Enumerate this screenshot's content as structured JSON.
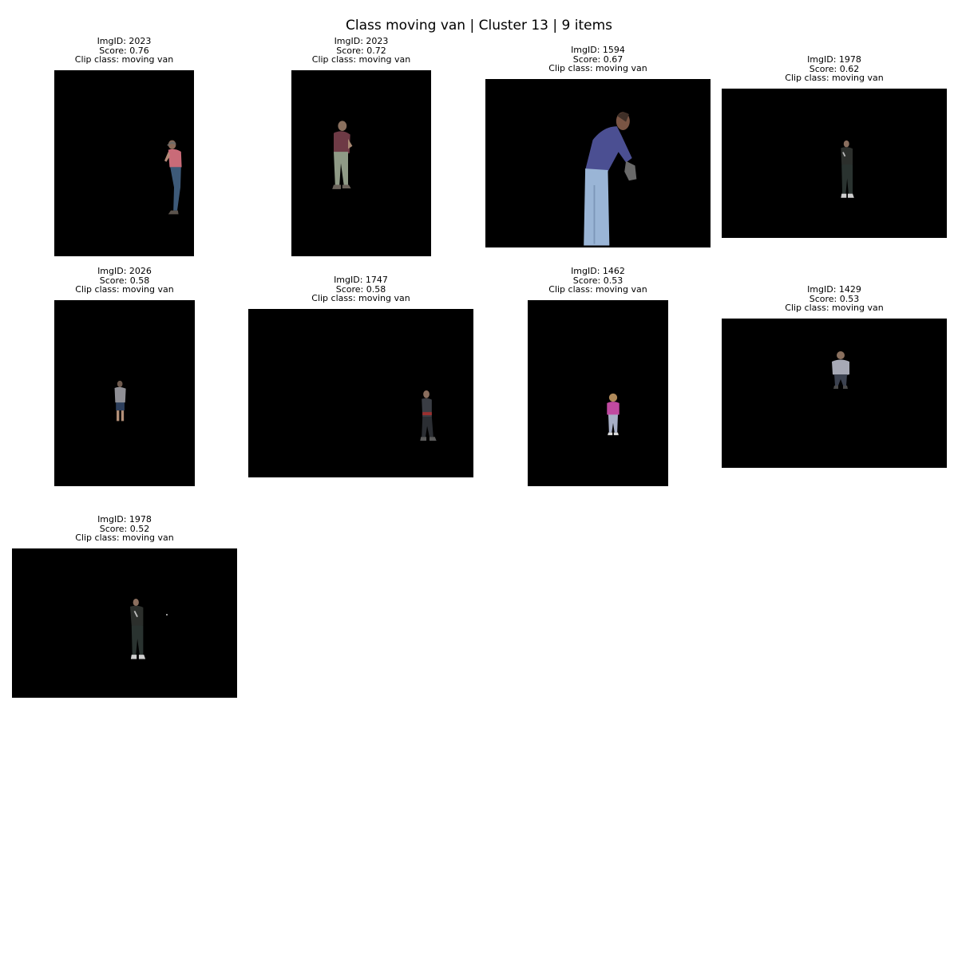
{
  "title": "Class moving van | Cluster 13 | 9 items",
  "items": [
    {
      "img_id": "ImgID: 2023",
      "score": "Score: 0.76",
      "clip_class": "Clip class: moving van",
      "subject": "person-cutout-icon"
    },
    {
      "img_id": "ImgID: 2023",
      "score": "Score: 0.72",
      "clip_class": "Clip class: moving van",
      "subject": "person-cutout-icon"
    },
    {
      "img_id": "ImgID: 1594",
      "score": "Score: 0.67",
      "clip_class": "Clip class: moving van",
      "subject": "person-cutout-icon"
    },
    {
      "img_id": "ImgID: 1978",
      "score": "Score: 0.62",
      "clip_class": "Clip class: moving van",
      "subject": "person-cutout-icon"
    },
    {
      "img_id": "ImgID: 2026",
      "score": "Score: 0.58",
      "clip_class": "Clip class: moving van",
      "subject": "person-cutout-icon"
    },
    {
      "img_id": "ImgID: 1747",
      "score": "Score: 0.58",
      "clip_class": "Clip class: moving van",
      "subject": "person-cutout-icon"
    },
    {
      "img_id": "ImgID: 1462",
      "score": "Score: 0.53",
      "clip_class": "Clip class: moving van",
      "subject": "person-cutout-icon"
    },
    {
      "img_id": "ImgID: 1429",
      "score": "Score: 0.53",
      "clip_class": "Clip class: moving van",
      "subject": "person-cutout-icon"
    },
    {
      "img_id": "ImgID: 1978",
      "score": "Score: 0.52",
      "clip_class": "Clip class: moving van",
      "subject": "person-cutout-icon"
    }
  ]
}
